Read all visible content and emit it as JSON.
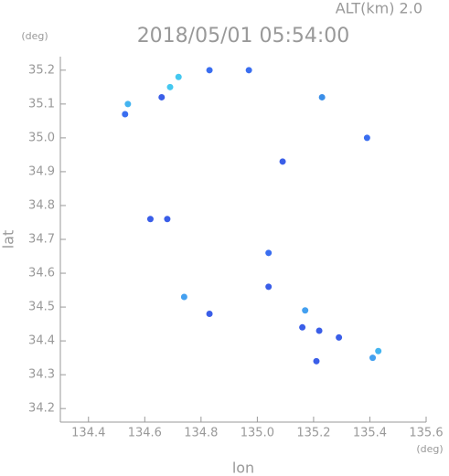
{
  "chart_data": {
    "type": "scatter",
    "title": "2018/05/01 05:54:00",
    "subtitle": "ALT(km) 2.0",
    "y_unit": "(deg)",
    "x_unit": "(deg)",
    "xlabel": "lon",
    "ylabel": "lat",
    "xlim": [
      134.3,
      135.6
    ],
    "ylim": [
      34.16,
      35.24
    ],
    "xticks": [
      134.4,
      134.6,
      134.8,
      {
        "value": 135,
        "label": "135.0"
      },
      135.2,
      135.4,
      135.6
    ],
    "yticks": [
      34.2,
      34.3,
      34.4,
      34.5,
      34.6,
      34.7,
      34.8,
      34.9,
      {
        "value": 35,
        "label": "35.0"
      },
      35.1,
      35.2
    ],
    "x": [
      134.53,
      134.54,
      134.69,
      134.72,
      134.66,
      134.83,
      134.97,
      135.23,
      135.39,
      135.09,
      134.62,
      134.68,
      135.04,
      135.04,
      134.74,
      134.83,
      135.17,
      135.16,
      135.22,
      135.29,
      135.21,
      135.41,
      135.43
    ],
    "y": [
      35.07,
      35.1,
      35.15,
      35.18,
      35.12,
      35.2,
      35.2,
      35.12,
      35.0,
      34.93,
      34.76,
      34.76,
      34.66,
      34.56,
      34.53,
      34.48,
      34.49,
      34.44,
      34.43,
      34.41,
      34.34,
      34.35,
      34.37
    ],
    "colors": [
      "#3a6ef0",
      "#44b4f0",
      "#44c8f0",
      "#44c8f0",
      "#3a5ee8",
      "#3a6ef0",
      "#3a6ef0",
      "#3a8ee8",
      "#3a6ef0",
      "#3a5ee8",
      "#3a5ee8",
      "#3a5ee8",
      "#3a6ef0",
      "#3a5ee8",
      "#44a0f0",
      "#3a5ee8",
      "#44a0f0",
      "#3a5ee8",
      "#3a5ee8",
      "#3a5ee8",
      "#3a5ee8",
      "#44a0f0",
      "#44b4f0"
    ]
  }
}
